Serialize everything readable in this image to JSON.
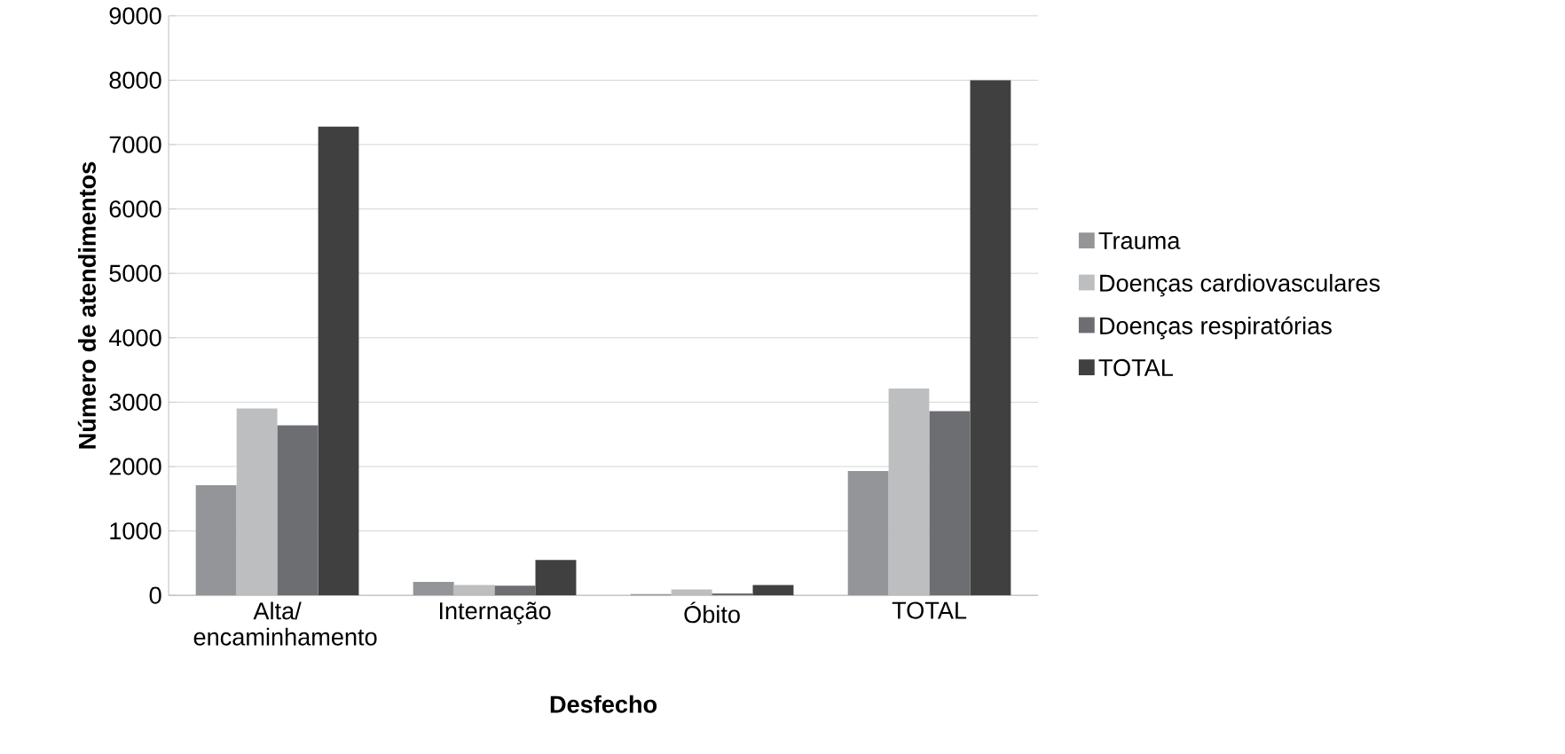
{
  "chart_data": {
    "type": "bar",
    "xlabel": "Desfecho",
    "ylabel": "Número de atendimentos",
    "categories": [
      "Alta/ encaminhamento",
      "Internação",
      "Óbito",
      "TOTAL"
    ],
    "series": [
      {
        "name": "Trauma",
        "color": "#939598",
        "values": [
          1710,
          210,
          20,
          1930
        ]
      },
      {
        "name": "Doenças cardiovasculares",
        "color": "#bcbec0",
        "values": [
          2900,
          160,
          90,
          3210
        ]
      },
      {
        "name": "Doenças respiratórias",
        "color": "#6d6e71",
        "values": [
          2640,
          150,
          30,
          2860
        ]
      },
      {
        "name": "TOTAL",
        "color": "#404040",
        "values": [
          7280,
          550,
          160,
          8000
        ]
      }
    ],
    "ylim": [
      0,
      9000
    ],
    "yticks": [
      0,
      1000,
      2000,
      3000,
      4000,
      5000,
      6000,
      7000,
      8000,
      9000
    ],
    "grid": "y",
    "legend": "right"
  }
}
